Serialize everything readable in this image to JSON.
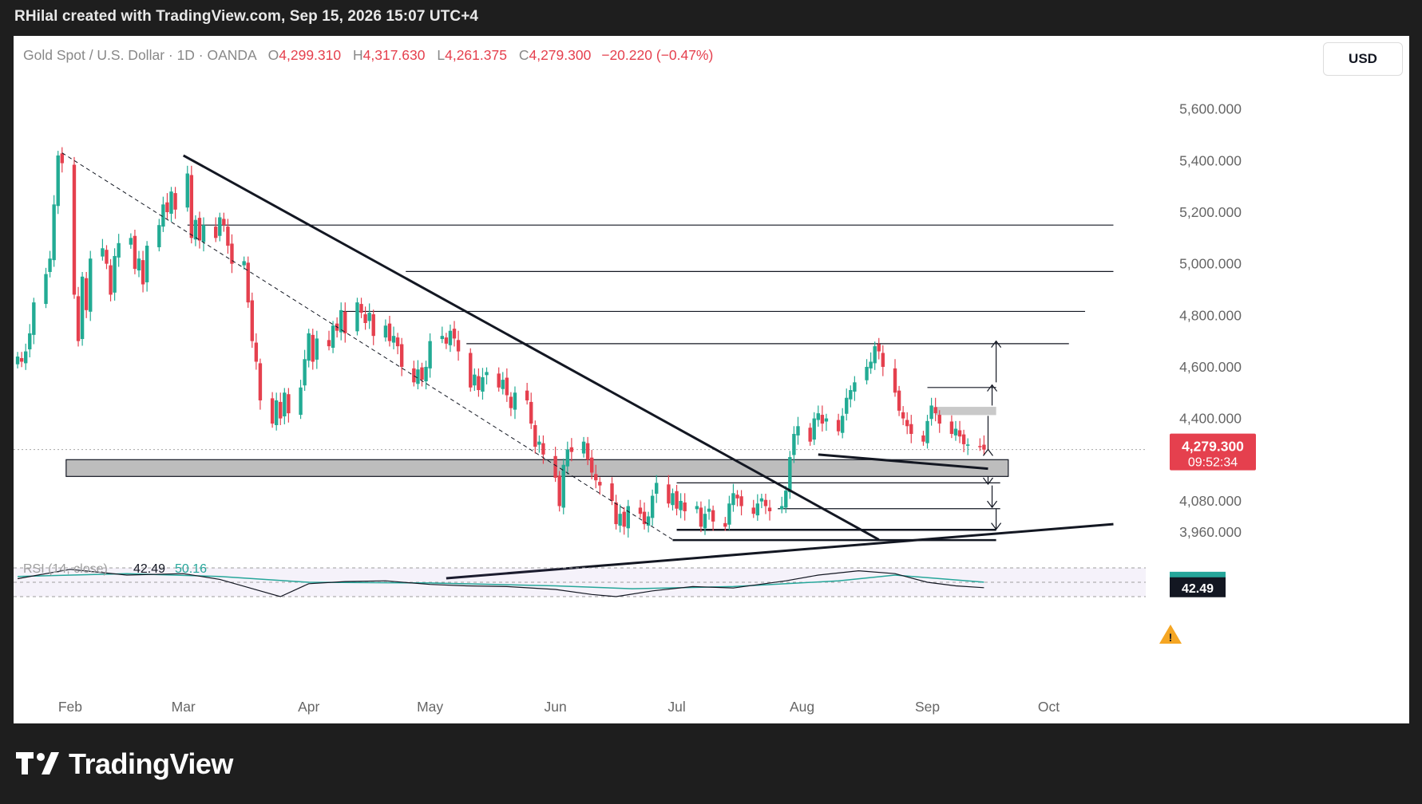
{
  "header": {
    "attribution": "RHilal created with TradingView.com, Sep 15, 2026 15:07 UTC+4"
  },
  "legend": {
    "symbol": "Gold Spot / U.S. Dollar · 1D · OANDA",
    "open_label": "O",
    "open": "4,299.310",
    "high_label": "H",
    "high": "4,317.630",
    "low_label": "L",
    "low": "4,261.375",
    "close_label": "C",
    "close": "4,279.300",
    "change": "−20.220 (−0.47%)"
  },
  "toolbar": {
    "currency": "USD"
  },
  "price_badge": {
    "price": "4,279.300",
    "countdown": "09:52:34",
    "color": "#e5404e"
  },
  "rsi": {
    "label": "RSI (14, close)",
    "value": "42.49",
    "ma_value": "50.16",
    "ma_color": "#26a69a",
    "line_color": "#131722",
    "warning_icon": "warning-icon"
  },
  "brand": {
    "name": "TradingView",
    "icon": "tradingview-logo-icon"
  },
  "colors": {
    "up": "#22ab94",
    "down": "#e5404e",
    "zone": "#b2b2b2",
    "bg": "#ffffff",
    "outer": "#1e1e1e"
  },
  "chart_data": {
    "type": "candlestick",
    "title": "Gold Spot / U.S. Dollar · 1D · OANDA",
    "ylim": [
      3780,
      5760
    ],
    "price_ticks": [
      {
        "label": "5,600.000",
        "value": 5600
      },
      {
        "label": "5,400.000",
        "value": 5400
      },
      {
        "label": "5,200.000",
        "value": 5200
      },
      {
        "label": "5,000.000",
        "value": 5000
      },
      {
        "label": "4,800.000",
        "value": 4800
      },
      {
        "label": "4,600.000",
        "value": 4600
      },
      {
        "label": "4,400.000",
        "value": 4400
      },
      {
        "label": "4,080.000",
        "value": 4080
      },
      {
        "label": "3,960.000",
        "value": 3960
      }
    ],
    "x_ticks": [
      {
        "label": "Feb",
        "date": "2026-02-01"
      },
      {
        "label": "Mar",
        "date": "2026-03-01"
      },
      {
        "label": "Apr",
        "date": "2026-04-01"
      },
      {
        "label": "May",
        "date": "2026-05-01"
      },
      {
        "label": "Jun",
        "date": "2026-06-01"
      },
      {
        "label": "Jul",
        "date": "2026-07-01"
      },
      {
        "label": "Aug",
        "date": "2026-08-01"
      },
      {
        "label": "Sep",
        "date": "2026-09-01"
      },
      {
        "label": "Oct",
        "date": "2026-10-01"
      }
    ],
    "x_range": [
      "2026-01-18",
      "2026-10-25"
    ],
    "closes": [
      [
        "2026-01-19",
        4640
      ],
      [
        "2026-01-20",
        4620
      ],
      [
        "2026-01-21",
        4660
      ],
      [
        "2026-01-22",
        4730
      ],
      [
        "2026-01-23",
        4850
      ],
      [
        "2026-01-26",
        4960
      ],
      [
        "2026-01-27",
        5020
      ],
      [
        "2026-01-28",
        5230
      ],
      [
        "2026-01-29",
        5420
      ],
      [
        "2026-01-30",
        5390
      ],
      [
        "2026-02-02",
        4880
      ],
      [
        "2026-02-03",
        4700
      ],
      [
        "2026-02-04",
        4950
      ],
      [
        "2026-02-05",
        4820
      ],
      [
        "2026-02-06",
        5020
      ],
      [
        "2026-02-09",
        5060
      ],
      [
        "2026-02-10",
        5000
      ],
      [
        "2026-02-11",
        4880
      ],
      [
        "2026-02-12",
        5030
      ],
      [
        "2026-02-13",
        5080
      ],
      [
        "2026-02-16",
        5100
      ],
      [
        "2026-02-17",
        4980
      ],
      [
        "2026-02-18",
        5020
      ],
      [
        "2026-02-19",
        4920
      ],
      [
        "2026-02-20",
        5070
      ],
      [
        "2026-02-23",
        5150
      ],
      [
        "2026-02-24",
        5230
      ],
      [
        "2026-02-25",
        5200
      ],
      [
        "2026-02-26",
        5280
      ],
      [
        "2026-02-27",
        5210
      ],
      [
        "2026-03-02",
        5350
      ],
      [
        "2026-03-03",
        5100
      ],
      [
        "2026-03-04",
        5170
      ],
      [
        "2026-03-05",
        5090
      ],
      [
        "2026-03-06",
        5150
      ],
      [
        "2026-03-09",
        5100
      ],
      [
        "2026-03-10",
        5180
      ],
      [
        "2026-03-11",
        5150
      ],
      [
        "2026-03-12",
        5070
      ],
      [
        "2026-03-13",
        5000
      ],
      [
        "2026-03-16",
        5010
      ],
      [
        "2026-03-17",
        4850
      ],
      [
        "2026-03-18",
        4700
      ],
      [
        "2026-03-19",
        4620
      ],
      [
        "2026-03-20",
        4470
      ],
      [
        "2026-03-23",
        4380
      ],
      [
        "2026-03-24",
        4470
      ],
      [
        "2026-03-25",
        4400
      ],
      [
        "2026-03-26",
        4500
      ],
      [
        "2026-03-27",
        4420
      ],
      [
        "2026-03-30",
        4520
      ],
      [
        "2026-03-31",
        4630
      ],
      [
        "2026-04-01",
        4730
      ],
      [
        "2026-04-02",
        4620
      ],
      [
        "2026-04-03",
        4710
      ],
      [
        "2026-04-06",
        4680
      ],
      [
        "2026-04-07",
        4760
      ],
      [
        "2026-04-08",
        4740
      ],
      [
        "2026-04-09",
        4820
      ],
      [
        "2026-04-10",
        4730
      ],
      [
        "2026-04-13",
        4850
      ],
      [
        "2026-04-14",
        4810
      ],
      [
        "2026-04-15",
        4770
      ],
      [
        "2026-04-16",
        4810
      ],
      [
        "2026-04-17",
        4720
      ],
      [
        "2026-04-20",
        4760
      ],
      [
        "2026-04-21",
        4700
      ],
      [
        "2026-04-22",
        4720
      ],
      [
        "2026-04-23",
        4680
      ],
      [
        "2026-04-24",
        4600
      ],
      [
        "2026-04-27",
        4540
      ],
      [
        "2026-04-28",
        4590
      ],
      [
        "2026-04-29",
        4550
      ],
      [
        "2026-04-30",
        4600
      ],
      [
        "2026-05-01",
        4700
      ],
      [
        "2026-05-04",
        4720
      ],
      [
        "2026-05-05",
        4690
      ],
      [
        "2026-05-06",
        4740
      ],
      [
        "2026-05-07",
        4710
      ],
      [
        "2026-05-08",
        4660
      ],
      [
        "2026-05-11",
        4520
      ],
      [
        "2026-05-12",
        4570
      ],
      [
        "2026-05-13",
        4510
      ],
      [
        "2026-05-14",
        4560
      ],
      [
        "2026-05-15",
        4580
      ],
      [
        "2026-05-18",
        4520
      ],
      [
        "2026-05-19",
        4550
      ],
      [
        "2026-05-20",
        4490
      ],
      [
        "2026-05-21",
        4440
      ],
      [
        "2026-05-22",
        4500
      ],
      [
        "2026-05-25",
        4470
      ],
      [
        "2026-05-26",
        4380
      ],
      [
        "2026-05-27",
        4290
      ],
      [
        "2026-05-28",
        4310
      ],
      [
        "2026-05-29",
        4260
      ],
      [
        "2026-06-01",
        4170
      ],
      [
        "2026-06-02",
        4060
      ],
      [
        "2026-06-03",
        4220
      ],
      [
        "2026-06-04",
        4280
      ],
      [
        "2026-06-05",
        4270
      ],
      [
        "2026-06-08",
        4310
      ],
      [
        "2026-06-09",
        4240
      ],
      [
        "2026-06-10",
        4190
      ],
      [
        "2026-06-11",
        4160
      ],
      [
        "2026-06-12",
        4140
      ],
      [
        "2026-06-15",
        4080
      ],
      [
        "2026-06-16",
        3990
      ],
      [
        "2026-06-17",
        4030
      ],
      [
        "2026-06-18",
        3980
      ],
      [
        "2026-06-19",
        4060
      ],
      [
        "2026-06-22",
        4030
      ],
      [
        "2026-06-23",
        3990
      ],
      [
        "2026-06-24",
        4020
      ],
      [
        "2026-06-25",
        4100
      ],
      [
        "2026-06-26",
        4150
      ],
      [
        "2026-06-29",
        4070
      ],
      [
        "2026-06-30",
        4110
      ],
      [
        "2026-07-01",
        4050
      ],
      [
        "2026-07-02",
        4080
      ],
      [
        "2026-07-03",
        4040
      ],
      [
        "2026-07-06",
        4060
      ],
      [
        "2026-07-07",
        3980
      ],
      [
        "2026-07-08",
        4030
      ],
      [
        "2026-07-09",
        4050
      ],
      [
        "2026-07-10",
        4000
      ],
      [
        "2026-07-13",
        3980
      ],
      [
        "2026-07-14",
        4070
      ],
      [
        "2026-07-15",
        4110
      ],
      [
        "2026-07-16",
        4090
      ],
      [
        "2026-07-17",
        4060
      ],
      [
        "2026-07-20",
        4030
      ],
      [
        "2026-07-21",
        4070
      ],
      [
        "2026-07-22",
        4090
      ],
      [
        "2026-07-23",
        4060
      ],
      [
        "2026-07-24",
        4040
      ],
      [
        "2026-07-27",
        4060
      ],
      [
        "2026-07-28",
        4120
      ],
      [
        "2026-07-29",
        4250
      ],
      [
        "2026-07-30",
        4340
      ],
      [
        "2026-07-31",
        4370
      ],
      [
        "2026-08-03",
        4310
      ],
      [
        "2026-08-04",
        4400
      ],
      [
        "2026-08-05",
        4420
      ],
      [
        "2026-08-06",
        4380
      ],
      [
        "2026-08-07",
        4400
      ],
      [
        "2026-08-10",
        4350
      ],
      [
        "2026-08-11",
        4410
      ],
      [
        "2026-08-12",
        4480
      ],
      [
        "2026-08-13",
        4510
      ],
      [
        "2026-08-14",
        4540
      ],
      [
        "2026-08-17",
        4600
      ],
      [
        "2026-08-18",
        4620
      ],
      [
        "2026-08-19",
        4680
      ],
      [
        "2026-08-20",
        4660
      ],
      [
        "2026-08-21",
        4600
      ],
      [
        "2026-08-24",
        4500
      ],
      [
        "2026-08-25",
        4430
      ],
      [
        "2026-08-26",
        4400
      ],
      [
        "2026-08-27",
        4370
      ],
      [
        "2026-08-28",
        4340
      ],
      [
        "2026-08-31",
        4310
      ],
      [
        "2026-09-01",
        4390
      ],
      [
        "2026-09-02",
        4450
      ],
      [
        "2026-09-03",
        4420
      ],
      [
        "2026-09-04",
        4380
      ],
      [
        "2026-09-07",
        4340
      ],
      [
        "2026-09-08",
        4360
      ],
      [
        "2026-09-09",
        4330
      ],
      [
        "2026-09-10",
        4300
      ],
      [
        "2026-09-11",
        4299
      ],
      [
        "2026-09-14",
        4290
      ],
      [
        "2026-09-15",
        4279
      ]
    ],
    "rsi_series": [
      [
        "2026-01-19",
        55
      ],
      [
        "2026-02-01",
        68
      ],
      [
        "2026-02-15",
        60
      ],
      [
        "2026-03-01",
        62
      ],
      [
        "2026-03-10",
        54
      ],
      [
        "2026-03-20",
        38
      ],
      [
        "2026-03-25",
        30
      ],
      [
        "2026-04-01",
        48
      ],
      [
        "2026-04-10",
        51
      ],
      [
        "2026-04-20",
        52
      ],
      [
        "2026-05-01",
        47
      ],
      [
        "2026-05-10",
        45
      ],
      [
        "2026-05-20",
        44
      ],
      [
        "2026-06-01",
        40
      ],
      [
        "2026-06-10",
        33
      ],
      [
        "2026-06-16",
        30
      ],
      [
        "2026-06-25",
        38
      ],
      [
        "2026-07-05",
        44
      ],
      [
        "2026-07-15",
        42
      ],
      [
        "2026-07-28",
        52
      ],
      [
        "2026-08-05",
        60
      ],
      [
        "2026-08-15",
        66
      ],
      [
        "2026-08-24",
        62
      ],
      [
        "2026-09-01",
        50
      ],
      [
        "2026-09-08",
        45
      ],
      [
        "2026-09-15",
        42.49
      ]
    ],
    "rsi_ma_series": [
      [
        "2026-01-19",
        58
      ],
      [
        "2026-02-15",
        62
      ],
      [
        "2026-03-10",
        58
      ],
      [
        "2026-04-01",
        50
      ],
      [
        "2026-05-01",
        49
      ],
      [
        "2026-06-01",
        45
      ],
      [
        "2026-06-20",
        41
      ],
      [
        "2026-07-15",
        44
      ],
      [
        "2026-08-10",
        52
      ],
      [
        "2026-08-24",
        60
      ],
      [
        "2026-09-15",
        50.16
      ]
    ],
    "rsi_levels": [
      70,
      50,
      30
    ],
    "zones": [
      {
        "from": "2026-01-31",
        "to": "2026-09-21",
        "low": 4175,
        "high": 4240
      },
      {
        "from": "2026-09-03",
        "to": "2026-09-18",
        "low": 4413,
        "high": 4445
      }
    ],
    "horizontal_levels": [
      {
        "from": "2026-03-02",
        "to": "2026-10-17",
        "value": 5150
      },
      {
        "from": "2026-04-25",
        "to": "2026-10-17",
        "value": 4970
      },
      {
        "from": "2026-04-09",
        "to": "2026-10-10",
        "value": 4815
      },
      {
        "from": "2026-05-10",
        "to": "2026-10-06",
        "value": 4690
      },
      {
        "from": "2026-09-01",
        "to": "2026-09-18",
        "value": 4520
      },
      {
        "from": "2026-07-01",
        "to": "2026-09-19",
        "value": 4150
      },
      {
        "from": "2026-07-26",
        "to": "2026-09-19",
        "value": 4050
      },
      {
        "from": "2026-07-01",
        "to": "2026-09-18",
        "value": 3968
      },
      {
        "from": "2026-06-30",
        "to": "2026-09-18",
        "value": 3928
      }
    ],
    "trend_lines": [
      {
        "from": [
          "2026-03-01",
          5420
        ],
        "to": [
          "2026-08-20",
          3930
        ],
        "style": "solid",
        "weight": 3
      },
      {
        "from": [
          "2026-01-30",
          5430
        ],
        "to": [
          "2026-06-30",
          3930
        ],
        "style": "dashed",
        "weight": 1
      },
      {
        "from": [
          "2026-05-05",
          3780
        ],
        "to": [
          "2026-10-17",
          3990
        ],
        "style": "solid",
        "weight": 3
      },
      {
        "from": [
          "2026-08-05",
          4260
        ],
        "to": [
          "2026-09-16",
          4205
        ],
        "style": "solid",
        "weight": 3
      }
    ],
    "arrows": [
      {
        "date": "2026-09-16",
        "from": 4410,
        "to": 4280,
        "direction": "up"
      },
      {
        "date": "2026-09-17",
        "from": 4450,
        "to": 4530,
        "direction": "up"
      },
      {
        "date": "2026-09-18",
        "from": 4540,
        "to": 4700,
        "direction": "up"
      },
      {
        "date": "2026-09-16",
        "from": 4175,
        "to": 4145,
        "direction": "down"
      },
      {
        "date": "2026-09-17",
        "from": 4140,
        "to": 4055,
        "direction": "down"
      },
      {
        "date": "2026-09-18",
        "from": 4050,
        "to": 3970,
        "direction": "down"
      }
    ],
    "last_price": 4279.3
  }
}
